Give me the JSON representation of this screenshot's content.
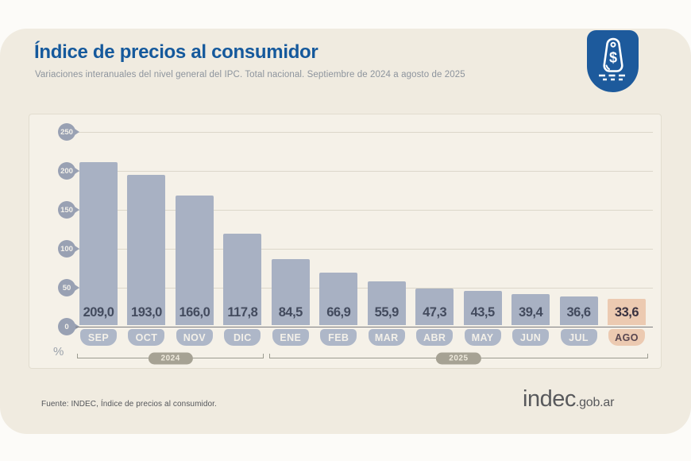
{
  "header": {
    "title": "Índice de precios al consumidor",
    "subtitle": "Variaciones interanuales del nivel general del IPC. Total nacional. Septiembre de 2024 a agosto de 2025"
  },
  "brand_badge": {
    "icon": "price-tag-dollar-icon",
    "color": "#1d5a9c"
  },
  "chart_data": {
    "type": "bar",
    "title": "Índice de precios al consumidor",
    "subtitle": "Variaciones interanuales del nivel general del IPC. Total nacional. Septiembre de 2024 a agosto de 2025",
    "ylabel": "%",
    "ylim": [
      0,
      250
    ],
    "yticks": [
      0,
      50,
      100,
      150,
      200,
      250
    ],
    "grid": true,
    "categories": [
      "SEP",
      "OCT",
      "NOV",
      "DIC",
      "ENE",
      "FEB",
      "MAR",
      "ABR",
      "MAY",
      "JUN",
      "JUL",
      "AGO"
    ],
    "values": [
      209.0,
      193.0,
      166.0,
      117.8,
      84.5,
      66.9,
      55.9,
      47.3,
      43.5,
      39.4,
      36.6,
      33.6
    ],
    "value_labels": [
      "209,0",
      "193,0",
      "166,0",
      "117,8",
      "84,5",
      "66,9",
      "55,9",
      "47,3",
      "43,5",
      "39,4",
      "36,6",
      "33,6"
    ],
    "highlight_index": 11,
    "year_groups": [
      {
        "label": "2024",
        "from": 0,
        "to": 3
      },
      {
        "label": "2025",
        "from": 4,
        "to": 11
      }
    ],
    "colors": {
      "bar": "#a8b1c3",
      "bar_highlight": "#eccab1",
      "month_pill": "#aeb7c8",
      "month_pill_highlight": "#eccab1",
      "y_badge": "#99a1b3",
      "gridline": "#dcd7ca",
      "baseline": "#7d7e80"
    }
  },
  "footer": {
    "source": "Fuente: INDEC, Índice de precios al consumidor.",
    "logo_main": "indec",
    "logo_suffix": ".gob.ar"
  }
}
